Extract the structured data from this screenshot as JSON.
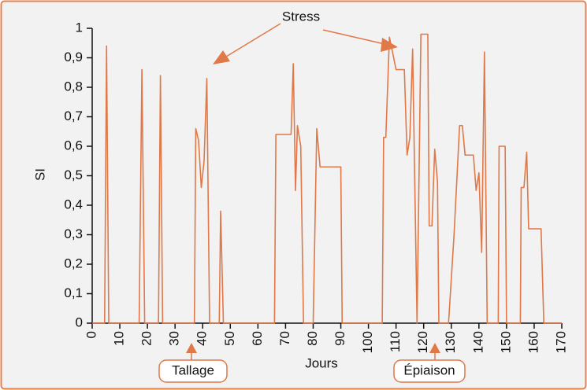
{
  "chart_data": {
    "type": "line",
    "xlabel": "Jours",
    "ylabel": "SI",
    "series": [
      {
        "name": "SI",
        "color": "#e07848",
        "x": [
          0,
          4.5,
          5.2,
          6,
          17,
          18,
          19,
          24,
          24.7,
          25.5,
          37,
          37.5,
          38.5,
          39.5,
          40.5,
          41.5,
          42.5,
          46,
          46.5,
          47.5,
          66,
          66.5,
          72,
          72.8,
          73.6,
          74.3,
          75.5,
          76.5,
          80,
          81.3,
          82.5,
          90,
          90.5,
          105,
          105.5,
          106.3,
          107.6,
          108.5,
          110,
          113,
          114,
          115,
          116,
          117.6,
          119,
          121.5,
          122,
          123,
          124,
          125,
          125.5,
          129,
          131,
          133,
          134,
          135,
          138,
          139,
          140,
          141,
          142,
          143,
          147,
          147.3,
          149.5,
          150,
          155,
          155.3,
          156.3,
          157.3,
          158,
          162.5,
          163.5,
          170
        ],
        "values": [
          0,
          0,
          0.94,
          0,
          0,
          0.86,
          0,
          0,
          0.84,
          0,
          0,
          0.66,
          0.62,
          0.46,
          0.55,
          0.83,
          0,
          0,
          0.38,
          0,
          0,
          0.64,
          0.64,
          0.88,
          0.45,
          0.67,
          0.6,
          0,
          0,
          0.66,
          0.53,
          0.53,
          0,
          0,
          0.63,
          0.63,
          0.97,
          0.93,
          0.86,
          0.86,
          0.57,
          0.63,
          0.93,
          0,
          0.98,
          0.98,
          0.33,
          0.33,
          0.59,
          0.48,
          0,
          0,
          0.3,
          0.67,
          0.67,
          0.57,
          0.57,
          0.45,
          0.51,
          0.24,
          0.92,
          0,
          0,
          0.6,
          0.6,
          0,
          0,
          0.46,
          0.46,
          0.58,
          0.32,
          0.32,
          0,
          0
        ]
      }
    ],
    "xlim": [
      0,
      170
    ],
    "xticks": [
      0,
      10,
      20,
      30,
      40,
      50,
      60,
      70,
      80,
      90,
      100,
      110,
      120,
      130,
      140,
      150,
      160,
      170
    ],
    "ylim": [
      0,
      1
    ],
    "yticks": [
      0,
      {
        "value": 0.1,
        "label": "0,1"
      },
      {
        "value": 0.2,
        "label": "0,2"
      },
      {
        "value": 0.3,
        "label": "0,3"
      },
      {
        "value": 0.4,
        "label": "0,4"
      },
      {
        "value": 0.5,
        "label": "0,5"
      },
      {
        "value": 0.6,
        "label": "0,6"
      },
      {
        "value": 0.7,
        "label": "0,7"
      },
      {
        "value": 0.8,
        "label": "0,8"
      },
      {
        "value": 0.9,
        "label": "0,9"
      },
      1
    ],
    "annotations": [
      {
        "text": "Stress"
      },
      {
        "text": "Tallage"
      },
      {
        "text": "Épiaison"
      }
    ]
  }
}
